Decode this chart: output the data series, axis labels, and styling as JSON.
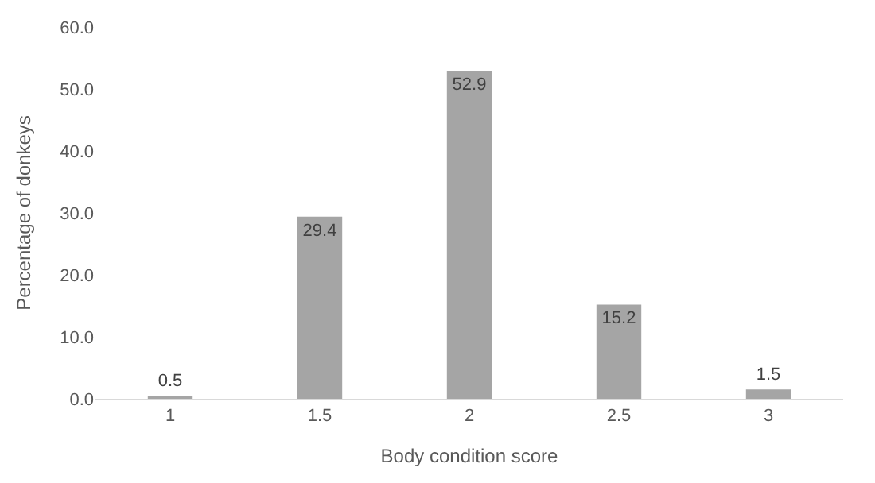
{
  "chart_data": {
    "type": "bar",
    "xlabel": "Body condition score",
    "ylabel": "Percentage of donkeys",
    "categories": [
      "1",
      "1.5",
      "2",
      "2.5",
      "3"
    ],
    "values": [
      0.5,
      29.4,
      52.9,
      15.2,
      1.5
    ],
    "color": "#a5a5a5",
    "ylim": [
      0,
      60
    ],
    "yticks": [
      {
        "value": 0,
        "label": "0.0"
      },
      {
        "value": 10,
        "label": "10.0"
      },
      {
        "value": 20,
        "label": "20.0"
      },
      {
        "value": 30,
        "label": "30.0"
      },
      {
        "value": 40,
        "label": "40.0"
      },
      {
        "value": 50,
        "label": "50.0"
      },
      {
        "value": 60,
        "label": "60.0"
      }
    ],
    "data_labels": true,
    "grid": false,
    "legend": false
  }
}
